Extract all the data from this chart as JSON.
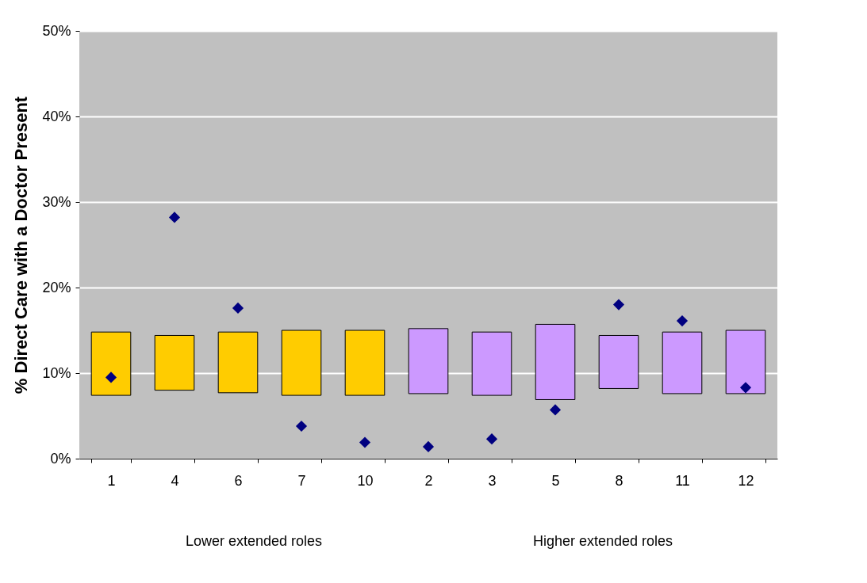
{
  "chart_data": {
    "type": "bar",
    "ylabel": "% Direct Care with a Doctor Present",
    "categories": [
      "1",
      "4",
      "6",
      "7",
      "10",
      "2",
      "3",
      "5",
      "8",
      "11",
      "12"
    ],
    "series": [
      {
        "colors": [
          "#ffcc00",
          "#ffcc00",
          "#ffcc00",
          "#ffcc00",
          "#ffcc00",
          "#cc99ff",
          "#cc99ff",
          "#cc99ff",
          "#cc99ff",
          "#cc99ff",
          "#cc99ff"
        ],
        "base": [
          7.4,
          8.0,
          7.7,
          7.4,
          7.4,
          7.6,
          7.4,
          6.9,
          8.2,
          7.6,
          7.6
        ],
        "values": [
          7.4,
          6.4,
          7.1,
          7.6,
          7.6,
          7.6,
          7.4,
          8.8,
          6.2,
          7.2,
          7.4
        ]
      },
      {
        "type": "scatter",
        "color": "#000080",
        "marker": "diamond",
        "values": [
          9.5,
          28.2,
          17.6,
          3.8,
          1.9,
          1.4,
          2.3,
          5.7,
          18.0,
          16.1,
          8.3
        ]
      }
    ],
    "ylim": [
      0,
      50
    ],
    "yticks": [
      {
        "value": 0,
        "label": "0%"
      },
      {
        "value": 10,
        "label": "10%"
      },
      {
        "value": 20,
        "label": "20%"
      },
      {
        "value": 30,
        "label": "30%"
      },
      {
        "value": 40,
        "label": "40%"
      },
      {
        "value": 50,
        "label": "50%"
      }
    ],
    "grid": "y",
    "annotations": [
      "Lower extended roles",
      "Higher extended roles"
    ]
  }
}
